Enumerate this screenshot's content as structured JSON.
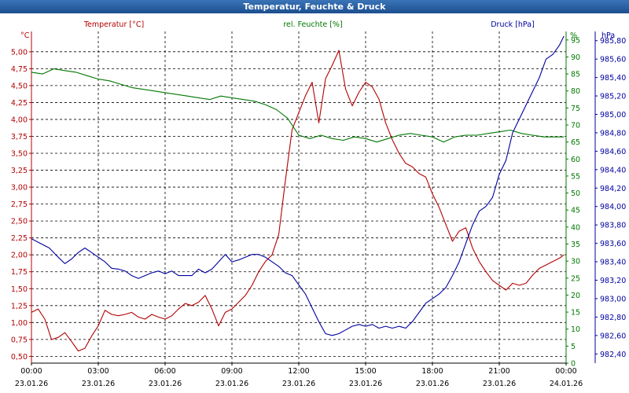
{
  "window": {
    "title": "Temperatur, Feuchte & Druck"
  },
  "colors": {
    "temperature": "#b40000",
    "humidity": "#007800",
    "pressure": "#0000a0",
    "grid": "#000000",
    "text": "#000000"
  },
  "chart_data": {
    "type": "line",
    "title": "Temperatur, Feuchte & Druck",
    "legend": [
      "Temperatur [°C]",
      "rel. Feuchte [%]",
      "Druck [hPa]"
    ],
    "x_ticks": [
      {
        "h": 0,
        "time": "00:00",
        "date": "23.01.26"
      },
      {
        "h": 3,
        "time": "03:00",
        "date": "23.01.26"
      },
      {
        "h": 6,
        "time": "06:00",
        "date": "23.01.26"
      },
      {
        "h": 9,
        "time": "09:00",
        "date": "23.01.26"
      },
      {
        "h": 12,
        "time": "12:00",
        "date": "23.01.26"
      },
      {
        "h": 15,
        "time": "15:00",
        "date": "23.01.26"
      },
      {
        "h": 18,
        "time": "18:00",
        "date": "23.01.26"
      },
      {
        "h": 21,
        "time": "21:00",
        "date": "23.01.26"
      },
      {
        "h": 24,
        "time": "00:00",
        "date": "24.01.26"
      }
    ],
    "xlim": [
      0,
      24
    ],
    "axes": {
      "temperature": {
        "unit": "°C",
        "range": [
          0.4,
          5.3
        ],
        "ticks": [
          "0,50",
          "0,75",
          "1,00",
          "1,25",
          "1,50",
          "1,75",
          "2,00",
          "2,25",
          "2,50",
          "2,75",
          "3,00",
          "3,25",
          "3,50",
          "3,75",
          "4,00",
          "4,25",
          "4,50",
          "4,75",
          "5,00"
        ]
      },
      "humidity": {
        "unit": "%",
        "range": [
          0,
          97.5
        ],
        "ticks": [
          "0",
          "5",
          "10",
          "15",
          "20",
          "25",
          "30",
          "35",
          "40",
          "45",
          "50",
          "55",
          "60",
          "65",
          "70",
          "75",
          "80",
          "85",
          "90",
          "95"
        ]
      },
      "pressure": {
        "unit": "hPa",
        "range": [
          982.3,
          985.9
        ],
        "ticks": [
          "982,40",
          "982,60",
          "982,80",
          "983,00",
          "983,20",
          "983,40",
          "983,60",
          "983,80",
          "984,00",
          "984,20",
          "984,40",
          "984,60",
          "984,80",
          "985,00",
          "985,20",
          "985,40",
          "985,60",
          "985,80"
        ]
      }
    },
    "series": [
      {
        "name": "Temperatur [°C]",
        "axis": "temperature",
        "x": [
          0,
          0.3,
          0.6,
          0.9,
          1.2,
          1.5,
          1.8,
          2.1,
          2.4,
          2.7,
          3.0,
          3.3,
          3.6,
          3.9,
          4.2,
          4.5,
          4.8,
          5.1,
          5.4,
          5.7,
          6.0,
          6.3,
          6.6,
          6.9,
          7.2,
          7.5,
          7.8,
          8.1,
          8.4,
          8.7,
          9.0,
          9.3,
          9.6,
          9.9,
          10.2,
          10.5,
          10.8,
          11.1,
          11.4,
          11.7,
          12.0,
          12.3,
          12.6,
          12.9,
          13.2,
          13.5,
          13.8,
          14.1,
          14.4,
          14.7,
          15.0,
          15.3,
          15.6,
          15.9,
          16.2,
          16.5,
          16.8,
          17.1,
          17.4,
          17.7,
          18.0,
          18.3,
          18.6,
          18.9,
          19.2,
          19.5,
          19.8,
          20.1,
          20.4,
          20.7,
          21.0,
          21.3,
          21.6,
          21.9,
          22.2,
          22.5,
          22.8,
          23.1,
          23.4,
          23.7,
          23.9
        ],
        "values": [
          1.15,
          1.2,
          1.05,
          0.75,
          0.78,
          0.85,
          0.72,
          0.58,
          0.62,
          0.8,
          0.95,
          1.18,
          1.12,
          1.1,
          1.12,
          1.15,
          1.08,
          1.05,
          1.12,
          1.08,
          1.05,
          1.1,
          1.2,
          1.28,
          1.25,
          1.3,
          1.4,
          1.2,
          0.95,
          1.15,
          1.2,
          1.3,
          1.4,
          1.55,
          1.75,
          1.9,
          2.0,
          2.3,
          3.1,
          3.85,
          4.1,
          4.35,
          4.55,
          3.95,
          4.6,
          4.8,
          5.02,
          4.45,
          4.2,
          4.4,
          4.55,
          4.48,
          4.3,
          3.95,
          3.7,
          3.5,
          3.35,
          3.3,
          3.2,
          3.15,
          2.9,
          2.7,
          2.45,
          2.2,
          2.35,
          2.4,
          2.1,
          1.9,
          1.75,
          1.62,
          1.55,
          1.48,
          1.58,
          1.55,
          1.58,
          1.7,
          1.8,
          1.85,
          1.9,
          1.95,
          2.0
        ]
      },
      {
        "name": "rel. Feuchte [%]",
        "axis": "humidity",
        "x": [
          0,
          0.5,
          1.0,
          1.5,
          2.0,
          2.5,
          3.0,
          3.5,
          4.0,
          4.5,
          5.0,
          5.5,
          6.0,
          6.5,
          7.0,
          7.5,
          8.0,
          8.5,
          9.0,
          9.5,
          10.0,
          10.5,
          11.0,
          11.5,
          12.0,
          12.5,
          13.0,
          13.5,
          14.0,
          14.5,
          15.0,
          15.5,
          16.0,
          16.5,
          17.0,
          17.5,
          18.0,
          18.5,
          19.0,
          19.5,
          20.0,
          20.5,
          21.0,
          21.5,
          22.0,
          22.5,
          23.0,
          23.5,
          23.9
        ],
        "values": [
          85.5,
          85.0,
          86.5,
          86.0,
          85.5,
          84.5,
          83.5,
          83.0,
          82.0,
          81.0,
          80.5,
          80.0,
          79.5,
          79.0,
          78.5,
          78.0,
          77.5,
          78.5,
          78.0,
          77.5,
          77.0,
          76.0,
          74.5,
          72.0,
          67.0,
          66.0,
          67.0,
          66.0,
          65.5,
          66.5,
          66.0,
          65.0,
          66.0,
          67.0,
          67.5,
          67.0,
          66.5,
          65.0,
          66.5,
          67.0,
          67.0,
          67.5,
          68.0,
          68.5,
          67.5,
          67.0,
          66.5,
          66.5,
          66.5
        ]
      },
      {
        "name": "Druck [hPa]",
        "axis": "pressure",
        "x": [
          0,
          0.4,
          0.8,
          1.2,
          1.5,
          1.8,
          2.1,
          2.4,
          2.7,
          3.0,
          3.3,
          3.6,
          3.9,
          4.2,
          4.5,
          4.8,
          5.1,
          5.4,
          5.7,
          6.0,
          6.3,
          6.6,
          6.9,
          7.2,
          7.5,
          7.8,
          8.1,
          8.4,
          8.7,
          9.0,
          9.3,
          9.6,
          9.9,
          10.2,
          10.5,
          10.8,
          11.1,
          11.4,
          11.7,
          12.0,
          12.3,
          12.6,
          12.9,
          13.2,
          13.5,
          13.8,
          14.1,
          14.4,
          14.7,
          15.0,
          15.3,
          15.6,
          15.9,
          16.2,
          16.5,
          16.8,
          17.1,
          17.4,
          17.7,
          18.0,
          18.3,
          18.6,
          18.9,
          19.2,
          19.5,
          19.8,
          20.1,
          20.4,
          20.7,
          21.0,
          21.3,
          21.6,
          21.9,
          22.2,
          22.5,
          22.8,
          23.1,
          23.4,
          23.7,
          23.9
        ],
        "values": [
          983.65,
          983.6,
          983.55,
          983.45,
          983.38,
          983.43,
          983.5,
          983.55,
          983.5,
          983.45,
          983.4,
          983.33,
          983.32,
          983.3,
          983.25,
          983.22,
          983.25,
          983.28,
          983.3,
          983.27,
          983.3,
          983.25,
          983.25,
          983.25,
          983.32,
          983.28,
          983.32,
          983.4,
          983.48,
          983.4,
          983.42,
          983.45,
          983.48,
          983.48,
          983.45,
          983.4,
          983.35,
          983.28,
          983.25,
          983.15,
          983.05,
          982.9,
          982.75,
          982.62,
          982.6,
          982.62,
          982.66,
          982.7,
          982.72,
          982.7,
          982.72,
          982.68,
          982.7,
          982.68,
          982.7,
          982.68,
          982.75,
          982.85,
          982.95,
          983.0,
          983.05,
          983.12,
          983.25,
          983.4,
          983.6,
          983.8,
          983.95,
          984.0,
          984.1,
          984.35,
          984.5,
          984.8,
          984.95,
          985.1,
          985.25,
          985.4,
          985.6,
          985.65,
          985.75,
          985.85
        ]
      }
    ]
  }
}
